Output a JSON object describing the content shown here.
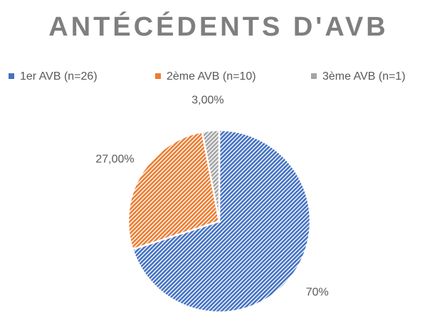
{
  "chart_data": {
    "type": "pie",
    "title": "ANTÉCÉDENTS D'AVB",
    "categories": [
      "1er AVB (n=26)",
      "2ème AVB (n=10)",
      "3ème AVB (n=1)"
    ],
    "values": [
      70,
      27,
      3
    ],
    "value_labels": [
      "70%",
      "27,00%",
      "3,00%"
    ],
    "colors": [
      "#4472c4",
      "#ed7d31",
      "#a5a5a5"
    ],
    "legend": "top"
  }
}
